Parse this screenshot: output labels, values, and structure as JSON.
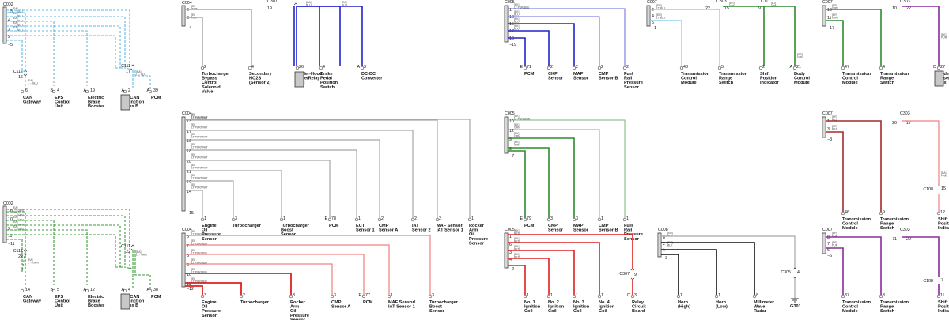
{
  "colors": {
    "light_blue_dashed": "#5fb8e0",
    "green_dashed": "#3a9a3a",
    "gray": "#a6a6a6",
    "blue": "#2222cc",
    "light_blue": "#7ec8e8",
    "green": "#2e8b2e",
    "purple": "#8b2b9b",
    "dark_red": "#a52a2a",
    "red": "#e02020",
    "black": "#111111",
    "pink": "#f08080"
  },
  "panels": [
    {
      "id": "p1",
      "x": 4,
      "y": 4,
      "connector": "C002",
      "pins": [
        {
          "n": "15"
        },
        {
          "n": "4"
        },
        {
          "n": "3"
        },
        {
          "n": "5"
        }
      ],
      "pin_bottom_label": "−5",
      "trunk_color": "light_blue_dashed",
      "dashed": true,
      "wire_labels": [
        [
          "[EA]",
          "L→ BLU"
        ],
        [
          "[EA]",
          "L→ BLU"
        ],
        [
          "[EA]",
          "L→ BLU"
        ],
        [
          "[EA]",
          "L→ BLU"
        ],
        [
          "[EA]",
          "L→ BLU"
        ]
      ],
      "mid_connectors": [
        {
          "name": "C112",
          "pin": "16",
          "x": 32,
          "y": 93
        },
        {
          "name": "C111",
          "pin": "17",
          "x": 168,
          "y": 86
        }
      ],
      "loads": [
        {
          "pin": "6",
          "name": [
            "CAN",
            "Gateway"
          ],
          "x": 32
        },
        {
          "pin_l": "B",
          "pin": "4",
          "name": [
            "EPS",
            "Control",
            "Unit"
          ],
          "x": 68
        },
        {
          "pin_l": "A",
          "pin": "19",
          "name": [
            "Electric",
            "Brake",
            "Booster"
          ],
          "x": 110
        },
        {
          "pin_l": "A",
          "pin": "2",
          "name": [
            "F-CAN",
            "Junction",
            "Box B"
          ],
          "x": 162,
          "box": true
        },
        {
          "pin_l": "A",
          "pin": "39",
          "name": [
            "PCM"
          ],
          "x": 190
        }
      ]
    },
    {
      "id": "p2",
      "x": 4,
      "y": 256,
      "connector": "C002",
      "pins": [
        {
          "n": "16"
        },
        {
          "n": "10"
        },
        {
          "n": "9"
        },
        {
          "n": "11"
        }
      ],
      "pin_bottom_label": "−11",
      "trunk_color": "green_dashed",
      "dashed": true,
      "wire_labels": [
        [
          "[EA]",
          "L→ GRN"
        ],
        [
          "[EA]",
          "L→ GRN"
        ],
        [
          "[EA]",
          "L→ GRN"
        ],
        [
          "[EA]",
          "L→ GRN"
        ],
        [
          "[EA]",
          "L→ GRN"
        ]
      ],
      "mid_connectors": [
        {
          "name": "C112",
          "pin": "22",
          "x": 32,
          "y": 320
        },
        {
          "name": "C111",
          "pin": "22",
          "x": 168,
          "y": 314
        }
      ],
      "loads": [
        {
          "pin": "14",
          "name": [
            "CAN",
            "Gateway"
          ],
          "x": 32
        },
        {
          "pin_l": "B",
          "pin": "5",
          "name": [
            "EPS",
            "Control",
            "Unit"
          ],
          "x": 68
        },
        {
          "pin_l": "A",
          "pin": "12",
          "name": [
            "Electric",
            "Brake",
            "Booster"
          ],
          "x": 110
        },
        {
          "pin_l": "A",
          "pin": "4",
          "name": [
            "F-CAN",
            "Junction",
            "Box B"
          ],
          "x": 162,
          "box": true
        },
        {
          "pin_l": "A",
          "pin": "38",
          "name": [
            "PCM"
          ],
          "x": 190
        }
      ]
    }
  ],
  "c004_top": {
    "connector": "C004",
    "pins": [
      "2",
      "3"
    ],
    "bottom": "−4",
    "wire_labels": [
      [
        "[EI]",
        "WHT"
      ],
      [
        "[EI]",
        "WHT"
      ]
    ],
    "c307": {
      "name": "C307",
      "pin": "19"
    },
    "loads": [
      {
        "pin": "2",
        "name": [
          "Turbocharger",
          "Bypass",
          "Control",
          "Solenoid",
          "Valve"
        ]
      },
      {
        "pin": "4",
        "name": [
          "Secondary",
          "HO2S",
          "(Sensor 2)"
        ]
      },
      {
        "pin": "26",
        "name": [
          "Under-Hood",
          "Fuse/Relay",
          "Box"
        ],
        "box": true
      },
      {
        "pin": "4",
        "name": [
          "Brake",
          "Pedal",
          "Position",
          "Switch"
        ]
      },
      {
        "pin_l": "A",
        "pin": "3",
        "name": [
          "DC-DC",
          "Converter"
        ]
      }
    ]
  },
  "c004_mid": {
    "connector": "C004",
    "pins": [
      "13",
      "17",
      "16",
      "18",
      "20",
      "21",
      "19",
      "14"
    ],
    "bottom": "−15",
    "wire_label": [
      "[EI]",
      "LT PUR/WHT"
    ],
    "loads": [
      {
        "pin": "1",
        "name": [
          "Engine",
          "Oil",
          "Pressure",
          "Sensor"
        ]
      },
      {
        "pin": "3",
        "name": [
          "Turbocharger"
        ]
      },
      {
        "pin": "1",
        "name": [
          "Turbocharger",
          "Boost",
          "Sensor"
        ]
      },
      {
        "pin_l": "E",
        "pin": "78",
        "name": [
          "PCM"
        ]
      },
      {
        "pin": "1",
        "name": [
          "ECT",
          "Sensor 1"
        ]
      },
      {
        "pin": "2",
        "name": [
          "CMP",
          "Sensor A"
        ]
      },
      {
        "pin": "2",
        "name": [
          "IAT",
          "Sensor 2"
        ]
      },
      {
        "pin": "2",
        "name": [
          "MAF Sensor/",
          "IAT Sensor 1"
        ]
      },
      {
        "pin": "1",
        "name": [
          "Rocker",
          "Arm",
          "Oil",
          "Pressure",
          "Sensor"
        ]
      }
    ]
  },
  "c004_bot": {
    "connector": "C004",
    "pins": [
      "6",
      "7",
      "8",
      "9",
      "10",
      "11"
    ],
    "bottom": "−12",
    "wire_label": [
      "[EI]",
      "LT PUR/RED"
    ],
    "loads": [
      {
        "pin": "3",
        "name": [
          "Engine",
          "Oil",
          "Pressure",
          "Sensor"
        ]
      },
      {
        "pin": "2",
        "name": [
          "Turbocharger"
        ]
      },
      {
        "pin": "3",
        "name": [
          "Rocker",
          "Arm",
          "Oil",
          "Pressure",
          "Sensor"
        ]
      },
      {
        "pin": "3",
        "name": [
          "CMP",
          "Sensor A"
        ]
      },
      {
        "pin_l": "E",
        "pin": "77",
        "name": [
          "PCM"
        ]
      },
      {
        "pin": "1",
        "name": [
          "MAF Sensor/",
          "IAT Sensor 1"
        ]
      },
      {
        "pin": "3",
        "name": [
          "Turbocharger",
          "Boost",
          "Sensor"
        ]
      }
    ]
  },
  "c005_top": {
    "connector": "C005",
    "pins": [
      "1",
      "13",
      "15",
      "17",
      "16",
      "19"
    ],
    "bottom": "−19",
    "wire_labels": [
      [
        "[EK]",
        "LT PUR/BLU"
      ],
      [
        "[EK]",
        "BLU"
      ],
      [
        "[EK]",
        "BLU"
      ],
      [
        "[EK]",
        "BLU"
      ]
    ],
    "loads": [
      {
        "pin_l": "E",
        "pin": "71",
        "name": [
          "PCM"
        ]
      },
      {
        "pin": "2",
        "name": [
          "CKP",
          "Sensor"
        ]
      },
      {
        "pin": "2",
        "name": [
          "MAP",
          "Sensor"
        ]
      },
      {
        "pin": "2",
        "name": [
          "CMP",
          "Sensor B"
        ]
      },
      {
        "pin": "2",
        "name": [
          "Fuel",
          "Rail",
          "Pressure",
          "Sensor"
        ]
      }
    ]
  },
  "c005_mid": {
    "connector": "C005",
    "pins": [
      "10",
      "12",
      "9",
      "8"
    ],
    "bottom": "−7",
    "wire_labels": [
      [
        "[EK]",
        "LT PUR/GRN"
      ],
      [
        "[EK]",
        "GRN"
      ],
      [
        "[EK]",
        "GRN"
      ],
      [
        "[EK]",
        "GRN"
      ]
    ],
    "loads": [
      {
        "pin_l": "E",
        "pin": "79",
        "name": [
          "PCM"
        ]
      },
      {
        "pin": "3",
        "name": [
          "CKP",
          "Sensor"
        ]
      },
      {
        "pin": "3",
        "name": [
          "MAP",
          "Sensor"
        ]
      },
      {
        "pin": "1",
        "name": [
          "CMP",
          "Sensor B"
        ]
      },
      {
        "pin": "1",
        "name": [
          "Fuel",
          "Rail",
          "Pressure",
          "Sensor"
        ]
      }
    ]
  },
  "c005_bot": {
    "connector": "C005",
    "pins": [
      "1",
      "6",
      "3",
      "4",
      "2"
    ],
    "bottom": "−2",
    "wire_labels": [
      [
        "[EK]",
        "RED"
      ],
      [
        "[EK]",
        "RED"
      ],
      [
        "[EK]",
        "RED"
      ],
      [
        "[EK]",
        "RED"
      ]
    ],
    "c307": {
      "name": "C307",
      "pin": "9"
    },
    "loads": [
      {
        "pin": "1",
        "name": [
          "No. 1",
          "Ignition",
          "Coil"
        ]
      },
      {
        "pin": "1",
        "name": [
          "No. 2",
          "Ignition",
          "Coil"
        ]
      },
      {
        "pin": "1",
        "name": [
          "No. 3",
          "Ignition",
          "Coil"
        ]
      },
      {
        "pin": "1",
        "name": [
          "No. 4",
          "Ignition",
          "Coil"
        ]
      },
      {
        "pin_l": "D",
        "pin": "3",
        "name": [
          "Relay",
          "Circuit",
          "Board"
        ]
      }
    ]
  },
  "c007_a": {
    "connector": "C007",
    "pins": [
      "2",
      "4",
      "5"
    ],
    "bottom": "−1",
    "wire_labels": [
      [
        "[ER]",
        "LT BLU"
      ],
      [
        "[ER]",
        "LT BLU"
      ]
    ],
    "c303": {
      "name": "C303",
      "pins": [
        "22",
        "15"
      ]
    },
    "c111": {
      "name": "C111",
      "pin": "9"
    },
    "loads": [
      {
        "pin": "48",
        "name": [
          "Transmission",
          "Control",
          "Module"
        ]
      },
      {
        "pin": "5",
        "name": [
          "Transmission",
          "Range",
          "Switch"
        ]
      },
      {
        "pin": "2",
        "name": [
          "Shift",
          "Position",
          "Indicator"
        ]
      },
      {
        "pin_l": "A",
        "pin": "21",
        "name": [
          "Body",
          "Control",
          "Module"
        ]
      }
    ]
  },
  "c007_b": {
    "connector": "C007",
    "pins": [
      "10",
      "11",
      "17"
    ],
    "bottom": "−17",
    "wire_labels": [
      [
        "[ER]",
        "GRN"
      ],
      [
        "[ER]",
        "GRN"
      ]
    ],
    "c303": {
      "name": "C303",
      "pins": [
        "10",
        "22"
      ]
    },
    "loads": [
      {
        "pin": "47",
        "name": [
          "Transmission",
          "Control",
          "Module"
        ]
      },
      {
        "pin": "4",
        "name": [
          "Transmission",
          "Range",
          "Switch"
        ]
      },
      {
        "pin_l": "D",
        "pin": "27",
        "name": [
          "Under-Dash",
          "Fuse/Relay",
          "Box"
        ],
        "box": true
      }
    ]
  },
  "c007_c": {
    "connector": "C007",
    "pins": [
      "1",
      "3"
    ],
    "bottom": "−3",
    "wire_labels": [
      [
        "[ER]",
        "RED"
      ],
      [
        "[ER]",
        "RED"
      ]
    ],
    "c303": {
      "name": "C303",
      "pins": [
        "20",
        "17"
      ]
    },
    "c108": {
      "name": "C108",
      "pin": "15"
    },
    "loads": [
      {
        "pin": "46",
        "name": [
          "Transmission",
          "Control",
          "Module"
        ]
      },
      {
        "pin": "9",
        "name": [
          "Transmission",
          "Range",
          "Switch"
        ]
      },
      {
        "pin": "12",
        "name": [
          "Shift",
          "Position",
          "Indicator"
        ]
      }
    ]
  },
  "c007_d": {
    "connector": "C007",
    "pins": [
      "8",
      "7",
      "6"
    ],
    "bottom": "−6",
    "wire_labels": [
      [
        "[ER]",
        "PUR"
      ],
      [
        "[ER]",
        "PUR"
      ]
    ],
    "c303": {
      "name": "C303",
      "pins": [
        "11",
        "20"
      ]
    },
    "c108": {
      "name": "C108",
      "pin": "7"
    },
    "loads": [
      {
        "pin": "37",
        "name": [
          "Transmission",
          "Control",
          "Module"
        ]
      },
      {
        "pin": "3",
        "name": [
          "Transmission",
          "Range",
          "Switch"
        ]
      },
      {
        "pin": "11",
        "name": [
          "Shift",
          "Position",
          "Indicator"
        ]
      }
    ]
  },
  "c008": {
    "connector": "C008",
    "pins": [
      "8",
      "2",
      "1",
      "3"
    ],
    "bottom": "−3",
    "wire_labels": [
      [
        "[EU]",
        "BLK"
      ],
      [
        "[EU]",
        "BLK"
      ]
    ],
    "c305": {
      "name": "C305",
      "pin": "4"
    },
    "ground": "G301",
    "loads": [
      {
        "pin": "1",
        "name": [
          "Horn",
          "(High)"
        ]
      },
      {
        "pin": "1",
        "name": [
          "Horn",
          "(Low)"
        ]
      },
      {
        "pin": "8",
        "name": [
          "Millimeter",
          "Wave",
          "Radar"
        ]
      }
    ]
  }
}
